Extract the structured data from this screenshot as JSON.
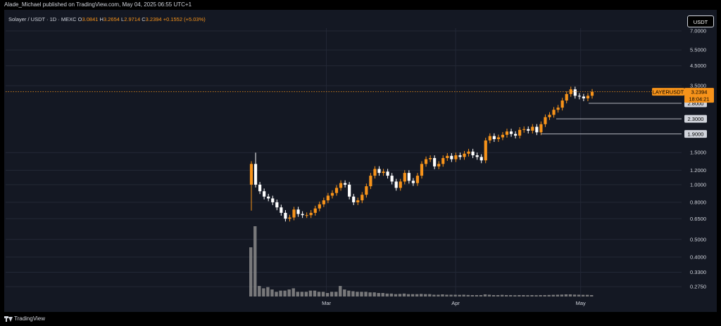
{
  "header": {
    "published_text": "Alade_Michael published on TradingView.com, May 04, 2025 06:55 UTC+1"
  },
  "legend": {
    "symbol": "Solayer / USDT · 1D · MEXC",
    "open_label": "O",
    "open_value": "3.0841",
    "high_label": "H",
    "high_value": "3.2654",
    "low_label": "L",
    "low_value": "2.9714",
    "close_label": "C",
    "close_value": "3.2394",
    "change": "+0.1552 (+5.03%)"
  },
  "currency_badge": "USDT",
  "footer": {
    "brand": "TradingView",
    "logo_icon": "tradingview-logo-icon"
  },
  "colors": {
    "background": "#000000",
    "panel": "#141823",
    "up": "#f7931a",
    "down": "#ffffff",
    "volume": "#8a8a8a",
    "text": "#d1d4dc"
  },
  "chart_data": {
    "type": "candlestick",
    "title": "",
    "symbol": "LAYERUSDT",
    "interval": "1D",
    "exchange": "MEXC",
    "y_scale": "log",
    "ylim": [
      0.23,
      7.6
    ],
    "y_ticks": [
      "7.0000",
      "5.5000",
      "4.5000",
      "3.5000",
      "1.5000",
      "1.2000",
      "1.0000",
      "0.8000",
      "0.6500",
      "0.5000",
      "0.4000",
      "0.3300",
      "0.2750"
    ],
    "x_ticks": [
      {
        "label": "Mar",
        "date": "2025-03-01"
      },
      {
        "label": "Apr",
        "date": "2025-04-01"
      },
      {
        "label": "May",
        "date": "2025-05-01"
      }
    ],
    "first_date": "2025-02-11",
    "last_date": "2025-05-04",
    "grid": true,
    "current_price": {
      "label": "LAYERUSDT",
      "price": "3.2394",
      "countdown": "18:04:21"
    },
    "levels": [
      {
        "label": "2.8000",
        "price": 2.8
      },
      {
        "label": "2.3000",
        "price": 2.3
      },
      {
        "label": "1.9000",
        "price": 1.9
      }
    ],
    "closes": [
      1.3,
      1.0,
      0.92,
      0.86,
      0.84,
      0.8,
      0.75,
      0.7,
      0.65,
      0.66,
      0.73,
      0.69,
      0.68,
      0.68,
      0.7,
      0.74,
      0.78,
      0.82,
      0.87,
      0.9,
      0.96,
      1.02,
      1.0,
      0.86,
      0.8,
      0.82,
      0.88,
      0.98,
      1.12,
      1.22,
      1.16,
      1.18,
      1.12,
      1.04,
      0.96,
      1.04,
      1.16,
      1.05,
      1.02,
      1.12,
      1.3,
      1.38,
      1.4,
      1.26,
      1.3,
      1.4,
      1.44,
      1.38,
      1.45,
      1.42,
      1.48,
      1.52,
      1.45,
      1.42,
      1.36,
      1.75,
      1.85,
      1.78,
      1.82,
      1.88,
      1.96,
      1.9,
      1.86,
      2.0,
      2.02,
      1.98,
      2.08,
      1.94,
      2.15,
      2.35,
      2.42,
      2.58,
      2.65,
      2.9,
      3.15,
      3.34,
      3.08,
      3.05,
      2.98,
      3.08,
      3.24
    ],
    "volume": [
      4.2,
      6.0,
      0.9,
      0.7,
      0.8,
      0.6,
      0.4,
      0.5,
      0.5,
      0.6,
      0.7,
      0.4,
      0.4,
      0.4,
      0.5,
      0.5,
      0.4,
      0.4,
      0.3,
      0.4,
      0.4,
      0.9,
      0.6,
      0.5,
      0.45,
      0.4,
      0.4,
      0.4,
      0.35,
      0.35,
      0.3,
      0.3,
      0.25,
      0.25,
      0.2,
      0.22,
      0.25,
      0.2,
      0.2,
      0.2,
      0.22,
      0.2,
      0.2,
      0.15,
      0.15,
      0.18,
      0.15,
      0.15,
      0.15,
      0.14,
      0.15,
      0.13,
      0.12,
      0.12,
      0.12,
      0.18,
      0.15,
      0.12,
      0.12,
      0.14,
      0.12,
      0.12,
      0.11,
      0.12,
      0.12,
      0.11,
      0.12,
      0.11,
      0.12,
      0.12,
      0.13,
      0.14,
      0.15,
      0.16,
      0.18,
      0.18,
      0.16,
      0.15,
      0.14,
      0.14,
      0.12
    ]
  }
}
